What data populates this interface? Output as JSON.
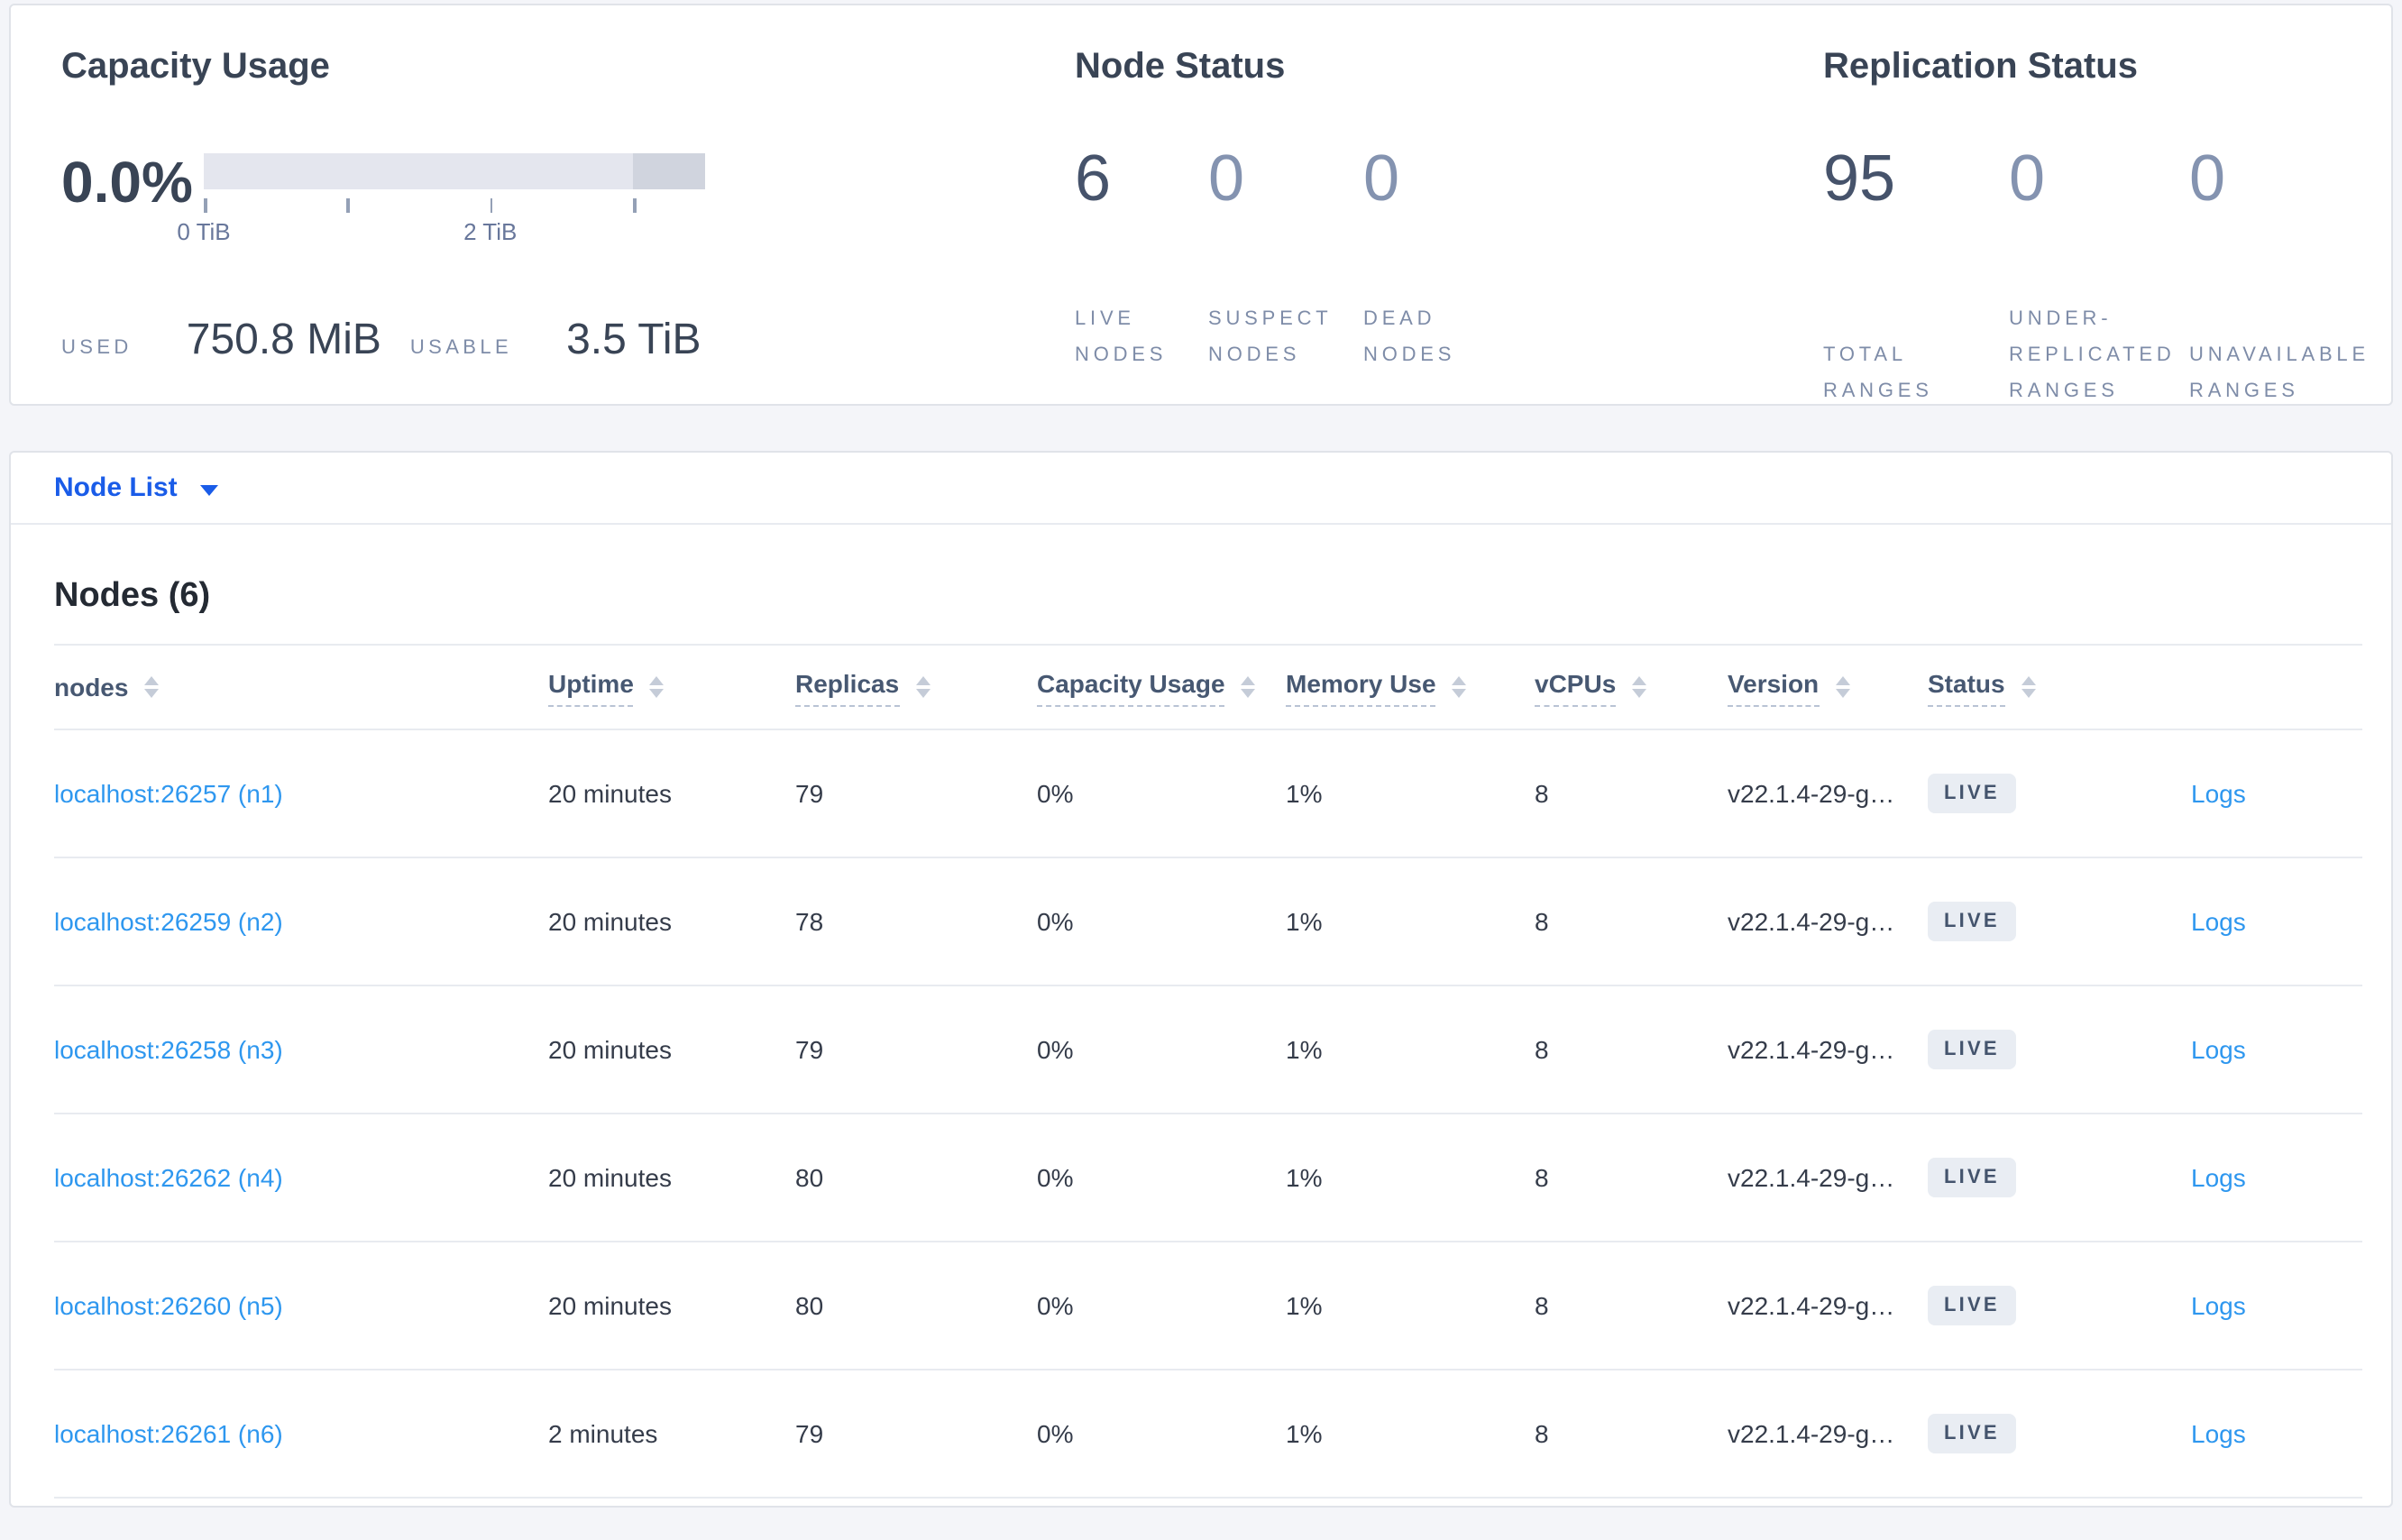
{
  "colors": {
    "page_background": "#f4f5f9",
    "accent_blue": "#1a5ce8",
    "link_blue": "#2e97ef",
    "title_text": "#394455",
    "stat_emphasis": "#46536b",
    "stat_muted": "#8493b0",
    "caps_label": "#7e8ca8",
    "badge_background": "#e9edf3",
    "bar_light": "#e4e6ee",
    "bar_dark": "#d0d4de"
  },
  "summary": {
    "capacity": {
      "title": "Capacity Usage",
      "percent": "0.0%",
      "used_label": "USED",
      "used_value": "750.8 MiB",
      "usable_label": "USABLE",
      "usable_value": "3.5 TiB",
      "bar": {
        "segments": [
          {
            "from": 0,
            "to": 85.7,
            "color": "#e4e6ee"
          },
          {
            "from": 85.7,
            "to": 100,
            "color": "#d0d4de"
          }
        ],
        "ticks": [
          {
            "percent": 0,
            "label": "0 TiB"
          },
          {
            "percent": 28.57,
            "label": ""
          },
          {
            "percent": 57.14,
            "label": "2 TiB"
          },
          {
            "percent": 85.71,
            "label": ""
          }
        ]
      }
    },
    "node_status": {
      "title": "Node Status",
      "stats": [
        {
          "value": "6",
          "label": "LIVE NODES",
          "emphasized": true
        },
        {
          "value": "0",
          "label": "SUSPECT NODES",
          "emphasized": false
        },
        {
          "value": "0",
          "label": "DEAD NODES",
          "emphasized": false
        }
      ]
    },
    "replication_status": {
      "title": "Replication Status",
      "stats": [
        {
          "value": "95",
          "label": "TOTAL RANGES",
          "emphasized": true
        },
        {
          "value": "0",
          "label": "UNDER-REPLICATED RANGES",
          "emphasized": false
        },
        {
          "value": "0",
          "label": "UNAVAILABLE RANGES",
          "emphasized": false
        }
      ]
    }
  },
  "node_list": {
    "label": "Node List"
  },
  "nodes": {
    "title": "Nodes (6)",
    "columns": [
      {
        "label": "nodes",
        "sortable": true,
        "underlined": false
      },
      {
        "label": "Uptime",
        "sortable": true,
        "underlined": true
      },
      {
        "label": "Replicas",
        "sortable": true,
        "underlined": true
      },
      {
        "label": "Capacity Usage",
        "sortable": true,
        "underlined": true
      },
      {
        "label": "Memory Use",
        "sortable": true,
        "underlined": true
      },
      {
        "label": "vCPUs",
        "sortable": true,
        "underlined": true
      },
      {
        "label": "Version",
        "sortable": true,
        "underlined": true
      },
      {
        "label": "Status",
        "sortable": true,
        "underlined": true
      },
      {
        "label": "",
        "sortable": false,
        "underlined": false
      }
    ],
    "rows": [
      {
        "node": "localhost:26257 (n1)",
        "uptime": "20 minutes",
        "replicas": "79",
        "capacity": "0%",
        "memory": "1%",
        "vcpus": "8",
        "version": "v22.1.4-29-g…",
        "status": "LIVE",
        "logs": "Logs"
      },
      {
        "node": "localhost:26259 (n2)",
        "uptime": "20 minutes",
        "replicas": "78",
        "capacity": "0%",
        "memory": "1%",
        "vcpus": "8",
        "version": "v22.1.4-29-g…",
        "status": "LIVE",
        "logs": "Logs"
      },
      {
        "node": "localhost:26258 (n3)",
        "uptime": "20 minutes",
        "replicas": "79",
        "capacity": "0%",
        "memory": "1%",
        "vcpus": "8",
        "version": "v22.1.4-29-g…",
        "status": "LIVE",
        "logs": "Logs"
      },
      {
        "node": "localhost:26262 (n4)",
        "uptime": "20 minutes",
        "replicas": "80",
        "capacity": "0%",
        "memory": "1%",
        "vcpus": "8",
        "version": "v22.1.4-29-g…",
        "status": "LIVE",
        "logs": "Logs"
      },
      {
        "node": "localhost:26260 (n5)",
        "uptime": "20 minutes",
        "replicas": "80",
        "capacity": "0%",
        "memory": "1%",
        "vcpus": "8",
        "version": "v22.1.4-29-g…",
        "status": "LIVE",
        "logs": "Logs"
      },
      {
        "node": "localhost:26261 (n6)",
        "uptime": "2 minutes",
        "replicas": "79",
        "capacity": "0%",
        "memory": "1%",
        "vcpus": "8",
        "version": "v22.1.4-29-g…",
        "status": "LIVE",
        "logs": "Logs"
      }
    ]
  }
}
